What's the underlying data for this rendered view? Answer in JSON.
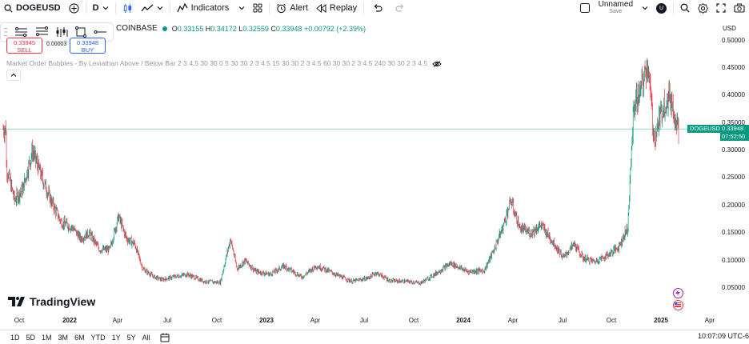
{
  "topbar": {
    "symbol": "DOGEUSD",
    "interval": "D",
    "indicators_label": "Indicators",
    "alert_label": "Alert",
    "replay_label": "Replay",
    "layout_name": "Unnamed",
    "save_label": "Save",
    "avatar_letter": "U"
  },
  "drawing_tools": [
    "trend-line-tool",
    "fib-tool",
    "pattern-tool",
    "rectangle-tool",
    "line-tool"
  ],
  "symbol_info": {
    "exchange": "COINBASE",
    "o_label": "O",
    "o": "0.33155",
    "h_label": "H",
    "h": "0.34172",
    "l_label": "L",
    "l": "0.32559",
    "c_label": "C",
    "c": "0.33948",
    "change": "+0.00792 (+2.39%)"
  },
  "trade": {
    "sell_price": "0.33945",
    "sell_label": "SELL",
    "spread": "0.00003",
    "buy_price": "0.33948",
    "buy_label": "BUY"
  },
  "indicator": {
    "text": "Market Order Bubbles - By Leviathan Above / Below Bar 2 3 4.5 30 30 0 5 30 30 2 3 4.5 15 30 30 2 3 4.5 60 30 30 2 3 4.5 240 30 30 2 3 4.5"
  },
  "price_axis": {
    "currency": "USD",
    "labels": [
      "0.50000",
      "0.45000",
      "0.40000",
      "0.35000",
      "0.30000",
      "0.25000",
      "0.20000",
      "0.15000",
      "0.10000",
      "0.05000"
    ],
    "last_symbol": "DOGEUSD",
    "last_price": "0.33948",
    "countdown": "07:52:50"
  },
  "time_axis": {
    "labels": [
      {
        "t": "Oct",
        "bold": false
      },
      {
        "t": "2022",
        "bold": true
      },
      {
        "t": "Apr",
        "bold": false
      },
      {
        "t": "Jul",
        "bold": false
      },
      {
        "t": "Oct",
        "bold": false
      },
      {
        "t": "2023",
        "bold": true
      },
      {
        "t": "Apr",
        "bold": false
      },
      {
        "t": "Jul",
        "bold": false
      },
      {
        "t": "Oct",
        "bold": false
      },
      {
        "t": "2024",
        "bold": true
      },
      {
        "t": "Apr",
        "bold": false
      },
      {
        "t": "Jul",
        "bold": false
      },
      {
        "t": "Oct",
        "bold": false
      },
      {
        "t": "2025",
        "bold": true
      },
      {
        "t": "Apr",
        "bold": false
      }
    ]
  },
  "logo_text": "TradingView",
  "bottombar": {
    "ranges": [
      "1D",
      "5D",
      "1M",
      "3M",
      "6M",
      "YTD",
      "1Y",
      "5Y",
      "All"
    ],
    "clock": "10:07:09 UTC-6"
  },
  "colors": {
    "up": "#089981",
    "down": "#f23645",
    "accent": "#2962ff"
  },
  "chart_data": {
    "type": "candlestick",
    "symbol": "DOGEUSD",
    "yrange": [
      0.03,
      0.52
    ],
    "close_series": [
      {
        "date": "2021-09-10",
        "close": 0.27
      },
      {
        "date": "2021-09-25",
        "close": 0.21
      },
      {
        "date": "2021-10-10",
        "close": 0.23
      },
      {
        "date": "2021-10-28",
        "close": 0.3
      },
      {
        "date": "2021-11-15",
        "close": 0.25
      },
      {
        "date": "2021-12-01",
        "close": 0.21
      },
      {
        "date": "2021-12-20",
        "close": 0.17
      },
      {
        "date": "2022-01-10",
        "close": 0.16
      },
      {
        "date": "2022-01-25",
        "close": 0.14
      },
      {
        "date": "2022-02-10",
        "close": 0.15
      },
      {
        "date": "2022-03-01",
        "close": 0.12
      },
      {
        "date": "2022-03-20",
        "close": 0.12
      },
      {
        "date": "2022-04-05",
        "close": 0.18
      },
      {
        "date": "2022-04-20",
        "close": 0.14
      },
      {
        "date": "2022-05-05",
        "close": 0.13
      },
      {
        "date": "2022-05-20",
        "close": 0.085
      },
      {
        "date": "2022-06-10",
        "close": 0.07
      },
      {
        "date": "2022-06-25",
        "close": 0.065
      },
      {
        "date": "2022-07-15",
        "close": 0.07
      },
      {
        "date": "2022-08-10",
        "close": 0.075
      },
      {
        "date": "2022-09-10",
        "close": 0.062
      },
      {
        "date": "2022-10-10",
        "close": 0.06
      },
      {
        "date": "2022-10-29",
        "close": 0.14
      },
      {
        "date": "2022-11-10",
        "close": 0.085
      },
      {
        "date": "2022-11-25",
        "close": 0.1
      },
      {
        "date": "2022-12-15",
        "close": 0.08
      },
      {
        "date": "2023-01-10",
        "close": 0.075
      },
      {
        "date": "2023-02-05",
        "close": 0.09
      },
      {
        "date": "2023-03-10",
        "close": 0.07
      },
      {
        "date": "2023-04-05",
        "close": 0.09
      },
      {
        "date": "2023-04-20",
        "close": 0.085
      },
      {
        "date": "2023-05-15",
        "close": 0.073
      },
      {
        "date": "2023-06-10",
        "close": 0.062
      },
      {
        "date": "2023-07-10",
        "close": 0.068
      },
      {
        "date": "2023-07-25",
        "close": 0.078
      },
      {
        "date": "2023-08-20",
        "close": 0.063
      },
      {
        "date": "2023-09-20",
        "close": 0.062
      },
      {
        "date": "2023-10-15",
        "close": 0.059
      },
      {
        "date": "2023-11-10",
        "close": 0.075
      },
      {
        "date": "2023-12-10",
        "close": 0.095
      },
      {
        "date": "2024-01-10",
        "close": 0.08
      },
      {
        "date": "2024-02-10",
        "close": 0.082
      },
      {
        "date": "2024-02-28",
        "close": 0.12
      },
      {
        "date": "2024-03-15",
        "close": 0.16
      },
      {
        "date": "2024-03-30",
        "close": 0.21
      },
      {
        "date": "2024-04-15",
        "close": 0.16
      },
      {
        "date": "2024-05-05",
        "close": 0.15
      },
      {
        "date": "2024-05-25",
        "close": 0.165
      },
      {
        "date": "2024-06-15",
        "close": 0.135
      },
      {
        "date": "2024-07-05",
        "close": 0.105
      },
      {
        "date": "2024-07-25",
        "close": 0.13
      },
      {
        "date": "2024-08-10",
        "close": 0.105
      },
      {
        "date": "2024-09-01",
        "close": 0.098
      },
      {
        "date": "2024-09-25",
        "close": 0.11
      },
      {
        "date": "2024-10-15",
        "close": 0.125
      },
      {
        "date": "2024-11-01",
        "close": 0.16
      },
      {
        "date": "2024-11-12",
        "close": 0.38
      },
      {
        "date": "2024-11-25",
        "close": 0.41
      },
      {
        "date": "2024-12-08",
        "close": 0.46
      },
      {
        "date": "2024-12-20",
        "close": 0.32
      },
      {
        "date": "2025-01-05",
        "close": 0.38
      },
      {
        "date": "2025-01-18",
        "close": 0.4
      },
      {
        "date": "2025-02-03",
        "close": 0.33948
      }
    ]
  }
}
